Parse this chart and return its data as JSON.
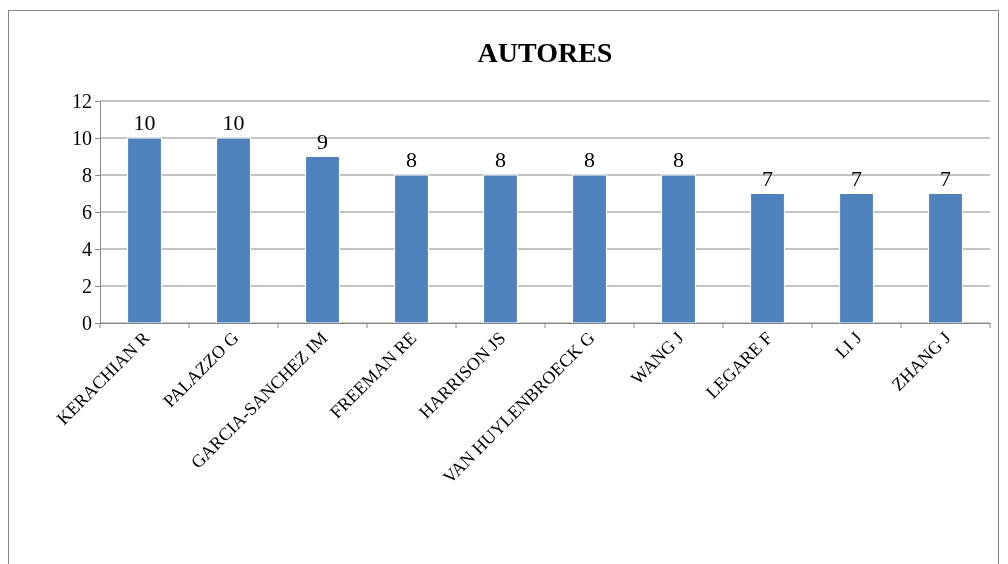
{
  "chart_data": {
    "type": "bar",
    "title": "AUTORES",
    "categories": [
      "KERACHIAN R",
      "PALAZZO G",
      "GARCIA-SANCHEZ IM",
      "FREEMAN RE",
      "HARRISON JS",
      "VAN HUYLENBROECK G",
      "WANG J",
      "LEGARE F",
      "LI J",
      "ZHANG J"
    ],
    "values": [
      10,
      10,
      9,
      8,
      8,
      8,
      8,
      7,
      7,
      7
    ],
    "color": "#4f81bd",
    "ylim": [
      0,
      12
    ],
    "yticks": [
      0,
      2,
      4,
      6,
      8,
      10,
      12
    ],
    "grid": "y",
    "data_labels": true
  }
}
